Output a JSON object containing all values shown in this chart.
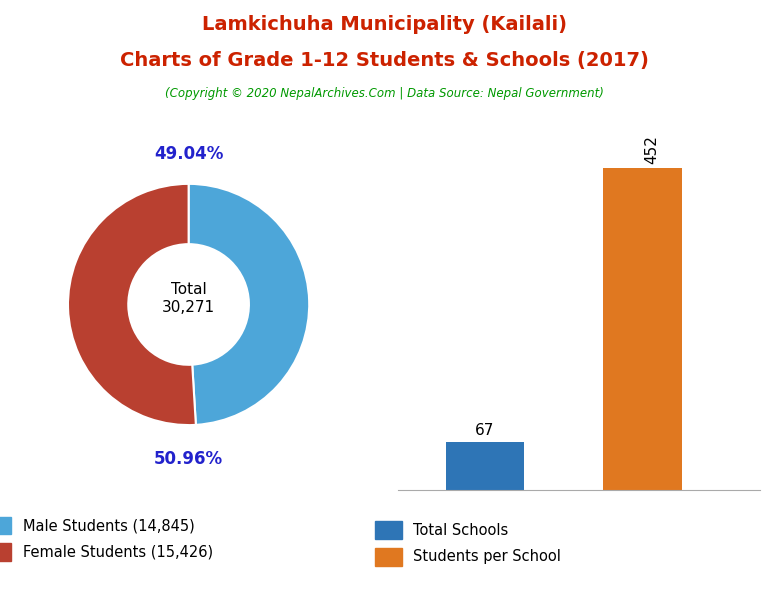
{
  "title_line1": "Lamkichuha Municipality (Kailali)",
  "title_line2": "Charts of Grade 1-12 Students & Schools (2017)",
  "subtitle": "(Copyright © 2020 NepalArchives.Com | Data Source: Nepal Government)",
  "title_color": "#cc2200",
  "subtitle_color": "#009900",
  "donut_values": [
    14845,
    15426
  ],
  "donut_colors": [
    "#4da6d9",
    "#b94030"
  ],
  "donut_labels": [
    "49.04%",
    "50.96%"
  ],
  "donut_total_label": "Total\n30,271",
  "legend_labels": [
    "Male Students (14,845)",
    "Female Students (15,426)"
  ],
  "bar_values": [
    67,
    452
  ],
  "bar_colors": [
    "#2e75b6",
    "#e07820"
  ],
  "bar_labels": [
    "Total Schools",
    "Students per School"
  ],
  "bar_value_labels": [
    "67",
    "452"
  ],
  "label_color_donut": "#2222cc",
  "background_color": "#ffffff"
}
